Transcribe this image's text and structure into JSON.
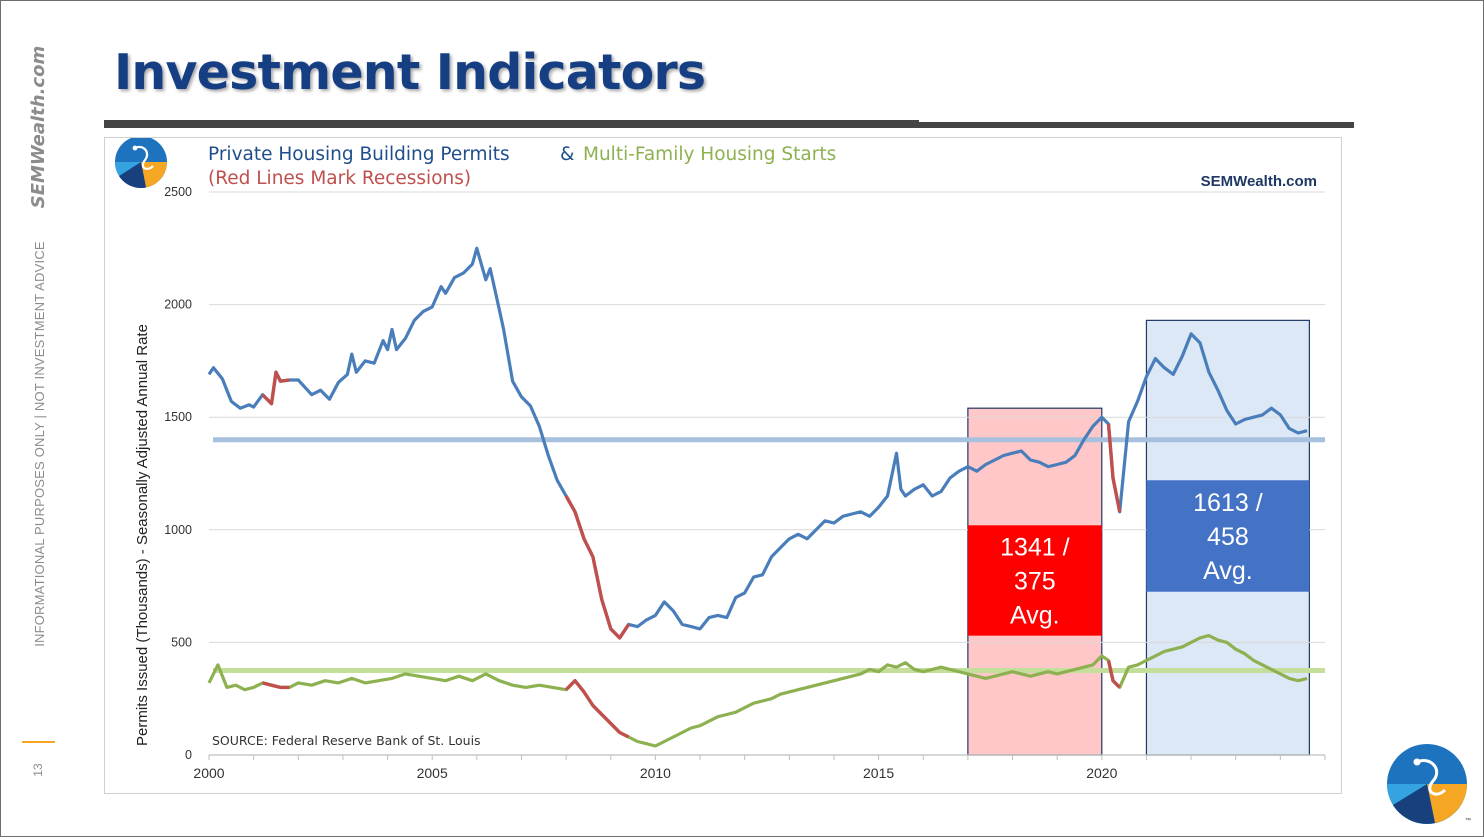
{
  "slide": {
    "title": "Investment Indicators",
    "side_brand": "SEMWealth.com",
    "side_disclaimer": "INFORMATIONAL PURPOSES ONLY | NOT INVESTMENT ADVICE",
    "page_number": "13"
  },
  "colors": {
    "title": "#163e82",
    "permits": "#4a7ebb",
    "multifamily": "#8db151",
    "recession": "#c0504d",
    "period1_fill": "#ffc7c7",
    "period1_label_bg": "#ff0000",
    "period2_fill": "#dce8f6",
    "period2_label_bg": "#4472c4",
    "permits_avg_line": "#a7c0de",
    "multifamily_avg_line": "#c4df9b"
  },
  "chart_data": {
    "type": "line",
    "title_part1": "Private Housing Building Permits",
    "title_amp": "&",
    "title_part2": "Multi-Family Housing Starts",
    "subtitle": "(Red Lines Mark Recessions)",
    "watermark": "SEMWealth.com",
    "source": "SOURCE:  Federal Reserve Bank of St. Louis",
    "ylabel": "Permits Issued (Thousands) - Seasonally Adjusted Annual Rate",
    "xlabel": "",
    "xlim": [
      2000,
      2025
    ],
    "ylim": [
      0,
      2500
    ],
    "x_ticks": [
      2000,
      2005,
      2010,
      2015,
      2020
    ],
    "y_ticks": [
      0,
      500,
      1000,
      1500,
      2000,
      2500
    ],
    "recessions": [
      [
        2001.2,
        2001.9
      ],
      [
        2008.0,
        2009.5
      ],
      [
        2020.15,
        2020.4
      ]
    ],
    "series": [
      {
        "name": "Private Housing Building Permits",
        "color": "#4a7ebb",
        "points": [
          [
            2000.0,
            1690
          ],
          [
            2000.1,
            1720
          ],
          [
            2000.3,
            1670
          ],
          [
            2000.5,
            1570
          ],
          [
            2000.7,
            1540
          ],
          [
            2000.9,
            1555
          ],
          [
            2001.0,
            1545
          ],
          [
            2001.2,
            1600
          ],
          [
            2001.4,
            1560
          ],
          [
            2001.5,
            1700
          ],
          [
            2001.6,
            1660
          ],
          [
            2001.8,
            1665
          ],
          [
            2002.0,
            1665
          ],
          [
            2002.3,
            1600
          ],
          [
            2002.5,
            1620
          ],
          [
            2002.7,
            1580
          ],
          [
            2002.9,
            1655
          ],
          [
            2003.1,
            1690
          ],
          [
            2003.2,
            1780
          ],
          [
            2003.3,
            1700
          ],
          [
            2003.5,
            1750
          ],
          [
            2003.7,
            1740
          ],
          [
            2003.9,
            1840
          ],
          [
            2004.0,
            1800
          ],
          [
            2004.1,
            1890
          ],
          [
            2004.2,
            1800
          ],
          [
            2004.4,
            1850
          ],
          [
            2004.6,
            1930
          ],
          [
            2004.8,
            1970
          ],
          [
            2005.0,
            1990
          ],
          [
            2005.2,
            2080
          ],
          [
            2005.3,
            2050
          ],
          [
            2005.5,
            2120
          ],
          [
            2005.7,
            2140
          ],
          [
            2005.9,
            2180
          ],
          [
            2006.0,
            2250
          ],
          [
            2006.1,
            2180
          ],
          [
            2006.2,
            2110
          ],
          [
            2006.3,
            2160
          ],
          [
            2006.5,
            1980
          ],
          [
            2006.6,
            1890
          ],
          [
            2006.8,
            1660
          ],
          [
            2007.0,
            1590
          ],
          [
            2007.2,
            1550
          ],
          [
            2007.4,
            1460
          ],
          [
            2007.6,
            1330
          ],
          [
            2007.8,
            1220
          ],
          [
            2008.0,
            1150
          ],
          [
            2008.2,
            1080
          ],
          [
            2008.4,
            960
          ],
          [
            2008.6,
            880
          ],
          [
            2008.8,
            690
          ],
          [
            2009.0,
            560
          ],
          [
            2009.2,
            520
          ],
          [
            2009.4,
            580
          ],
          [
            2009.6,
            570
          ],
          [
            2009.8,
            600
          ],
          [
            2010.0,
            620
          ],
          [
            2010.2,
            680
          ],
          [
            2010.4,
            640
          ],
          [
            2010.6,
            580
          ],
          [
            2010.8,
            570
          ],
          [
            2011.0,
            560
          ],
          [
            2011.2,
            610
          ],
          [
            2011.4,
            620
          ],
          [
            2011.6,
            610
          ],
          [
            2011.8,
            700
          ],
          [
            2012.0,
            720
          ],
          [
            2012.2,
            790
          ],
          [
            2012.4,
            800
          ],
          [
            2012.6,
            880
          ],
          [
            2012.8,
            920
          ],
          [
            2013.0,
            960
          ],
          [
            2013.2,
            980
          ],
          [
            2013.4,
            960
          ],
          [
            2013.6,
            1000
          ],
          [
            2013.8,
            1040
          ],
          [
            2014.0,
            1030
          ],
          [
            2014.2,
            1060
          ],
          [
            2014.4,
            1070
          ],
          [
            2014.6,
            1080
          ],
          [
            2014.8,
            1060
          ],
          [
            2015.0,
            1100
          ],
          [
            2015.2,
            1150
          ],
          [
            2015.4,
            1340
          ],
          [
            2015.5,
            1180
          ],
          [
            2015.6,
            1150
          ],
          [
            2015.8,
            1180
          ],
          [
            2016.0,
            1200
          ],
          [
            2016.2,
            1150
          ],
          [
            2016.4,
            1170
          ],
          [
            2016.6,
            1230
          ],
          [
            2016.8,
            1260
          ],
          [
            2017.0,
            1280
          ],
          [
            2017.2,
            1260
          ],
          [
            2017.4,
            1290
          ],
          [
            2017.6,
            1310
          ],
          [
            2017.8,
            1330
          ],
          [
            2018.0,
            1340
          ],
          [
            2018.2,
            1350
          ],
          [
            2018.4,
            1310
          ],
          [
            2018.6,
            1300
          ],
          [
            2018.8,
            1280
          ],
          [
            2019.0,
            1290
          ],
          [
            2019.2,
            1300
          ],
          [
            2019.4,
            1330
          ],
          [
            2019.6,
            1400
          ],
          [
            2019.8,
            1460
          ],
          [
            2020.0,
            1500
          ],
          [
            2020.15,
            1470
          ],
          [
            2020.25,
            1230
          ],
          [
            2020.4,
            1080
          ],
          [
            2020.6,
            1480
          ],
          [
            2020.8,
            1570
          ],
          [
            2021.0,
            1680
          ],
          [
            2021.2,
            1760
          ],
          [
            2021.4,
            1720
          ],
          [
            2021.6,
            1690
          ],
          [
            2021.8,
            1770
          ],
          [
            2022.0,
            1870
          ],
          [
            2022.2,
            1830
          ],
          [
            2022.4,
            1700
          ],
          [
            2022.6,
            1620
          ],
          [
            2022.8,
            1530
          ],
          [
            2023.0,
            1470
          ],
          [
            2023.2,
            1490
          ],
          [
            2023.4,
            1500
          ],
          [
            2023.6,
            1510
          ],
          [
            2023.8,
            1540
          ],
          [
            2024.0,
            1510
          ],
          [
            2024.2,
            1450
          ],
          [
            2024.4,
            1430
          ],
          [
            2024.6,
            1440
          ]
        ]
      },
      {
        "name": "Multi-Family Housing Starts",
        "color": "#8db151",
        "points": [
          [
            2000.0,
            320
          ],
          [
            2000.2,
            400
          ],
          [
            2000.4,
            300
          ],
          [
            2000.6,
            310
          ],
          [
            2000.8,
            290
          ],
          [
            2001.0,
            300
          ],
          [
            2001.2,
            320
          ],
          [
            2001.4,
            310
          ],
          [
            2001.6,
            300
          ],
          [
            2001.8,
            300
          ],
          [
            2002.0,
            320
          ],
          [
            2002.3,
            310
          ],
          [
            2002.6,
            330
          ],
          [
            2002.9,
            320
          ],
          [
            2003.2,
            340
          ],
          [
            2003.5,
            320
          ],
          [
            2003.8,
            330
          ],
          [
            2004.1,
            340
          ],
          [
            2004.4,
            360
          ],
          [
            2004.7,
            350
          ],
          [
            2005.0,
            340
          ],
          [
            2005.3,
            330
          ],
          [
            2005.6,
            350
          ],
          [
            2005.9,
            330
          ],
          [
            2006.2,
            360
          ],
          [
            2006.5,
            330
          ],
          [
            2006.8,
            310
          ],
          [
            2007.1,
            300
          ],
          [
            2007.4,
            310
          ],
          [
            2007.7,
            300
          ],
          [
            2008.0,
            290
          ],
          [
            2008.2,
            330
          ],
          [
            2008.4,
            280
          ],
          [
            2008.6,
            220
          ],
          [
            2008.8,
            180
          ],
          [
            2009.0,
            140
          ],
          [
            2009.2,
            100
          ],
          [
            2009.4,
            80
          ],
          [
            2009.6,
            60
          ],
          [
            2009.8,
            50
          ],
          [
            2010.0,
            40
          ],
          [
            2010.2,
            60
          ],
          [
            2010.4,
            80
          ],
          [
            2010.6,
            100
          ],
          [
            2010.8,
            120
          ],
          [
            2011.0,
            130
          ],
          [
            2011.2,
            150
          ],
          [
            2011.4,
            170
          ],
          [
            2011.6,
            180
          ],
          [
            2011.8,
            190
          ],
          [
            2012.0,
            210
          ],
          [
            2012.2,
            230
          ],
          [
            2012.4,
            240
          ],
          [
            2012.6,
            250
          ],
          [
            2012.8,
            270
          ],
          [
            2013.0,
            280
          ],
          [
            2013.2,
            290
          ],
          [
            2013.4,
            300
          ],
          [
            2013.6,
            310
          ],
          [
            2013.8,
            320
          ],
          [
            2014.0,
            330
          ],
          [
            2014.2,
            340
          ],
          [
            2014.4,
            350
          ],
          [
            2014.6,
            360
          ],
          [
            2014.8,
            380
          ],
          [
            2015.0,
            370
          ],
          [
            2015.2,
            400
          ],
          [
            2015.4,
            390
          ],
          [
            2015.6,
            410
          ],
          [
            2015.8,
            380
          ],
          [
            2016.0,
            370
          ],
          [
            2016.2,
            380
          ],
          [
            2016.4,
            390
          ],
          [
            2016.6,
            380
          ],
          [
            2016.8,
            370
          ],
          [
            2017.0,
            360
          ],
          [
            2017.2,
            350
          ],
          [
            2017.4,
            340
          ],
          [
            2017.6,
            350
          ],
          [
            2017.8,
            360
          ],
          [
            2018.0,
            370
          ],
          [
            2018.2,
            360
          ],
          [
            2018.4,
            350
          ],
          [
            2018.6,
            360
          ],
          [
            2018.8,
            370
          ],
          [
            2019.0,
            360
          ],
          [
            2019.2,
            370
          ],
          [
            2019.4,
            380
          ],
          [
            2019.6,
            390
          ],
          [
            2019.8,
            400
          ],
          [
            2020.0,
            440
          ],
          [
            2020.15,
            420
          ],
          [
            2020.25,
            330
          ],
          [
            2020.4,
            300
          ],
          [
            2020.6,
            390
          ],
          [
            2020.8,
            400
          ],
          [
            2021.0,
            420
          ],
          [
            2021.2,
            440
          ],
          [
            2021.4,
            460
          ],
          [
            2021.6,
            470
          ],
          [
            2021.8,
            480
          ],
          [
            2022.0,
            500
          ],
          [
            2022.2,
            520
          ],
          [
            2022.4,
            530
          ],
          [
            2022.6,
            510
          ],
          [
            2022.8,
            500
          ],
          [
            2023.0,
            470
          ],
          [
            2023.2,
            450
          ],
          [
            2023.4,
            420
          ],
          [
            2023.6,
            400
          ],
          [
            2023.8,
            380
          ],
          [
            2024.0,
            360
          ],
          [
            2024.2,
            340
          ],
          [
            2024.4,
            330
          ],
          [
            2024.6,
            340
          ]
        ]
      }
    ],
    "averages": [
      {
        "name": "Permits Average",
        "value": 1400
      },
      {
        "name": "Multi-Family Average",
        "value": 375
      }
    ],
    "periods": [
      {
        "x_range": [
          2017.0,
          2020.0
        ],
        "y_max": 1540,
        "label_y_range": [
          530,
          1020
        ],
        "label_lines": [
          "1341 /",
          "375",
          "Avg."
        ]
      },
      {
        "x_range": [
          2021.0,
          2024.65
        ],
        "y_max": 1930,
        "label_y_range": [
          725,
          1220
        ],
        "label_lines": [
          "1613 /",
          "458",
          "Avg."
        ]
      }
    ]
  }
}
